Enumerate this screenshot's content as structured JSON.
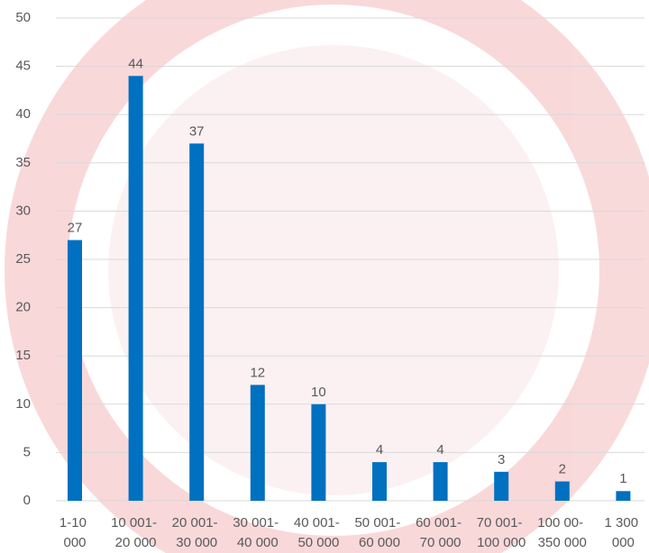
{
  "chart_data": {
    "type": "bar",
    "categories": [
      "1-10 000",
      "10 001- 20 000",
      "20 001- 30 000",
      "30 001- 40 000",
      "40 001- 50 000",
      "50 001- 60 000",
      "60 001- 70 000",
      "70 001- 100 000",
      "100 00- 350 000",
      "1 300 000"
    ],
    "values": [
      27,
      44,
      37,
      12,
      10,
      4,
      4,
      3,
      2,
      1
    ],
    "color": "#0070c0",
    "ylim": [
      0,
      50
    ],
    "yticks": [
      0,
      5,
      10,
      15,
      20,
      25,
      30,
      35,
      40,
      45,
      50
    ],
    "grid": true
  }
}
